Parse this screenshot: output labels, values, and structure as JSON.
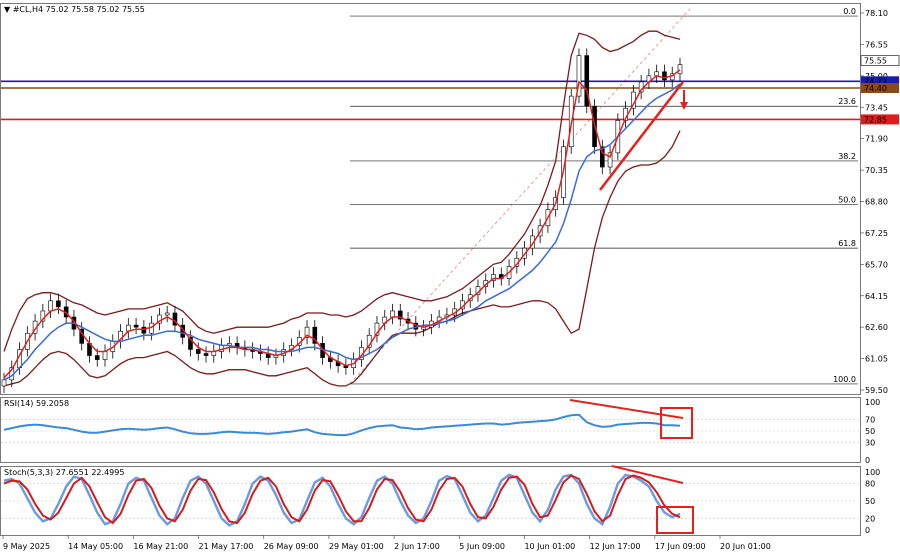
{
  "header": {
    "main": "▼ #CL,H4  75.02 75.58 75.02 75.55",
    "rsi": "RSI(14) 59.2058",
    "stoch": "Stoch(5,3,3) 27.6551 22.4995"
  },
  "chart_data": [
    {
      "type": "candlestick",
      "symbol": "#CL",
      "timeframe": "H4",
      "ohlc_last": {
        "open": 75.02,
        "high": 75.58,
        "low": 75.02,
        "close": 75.55
      },
      "price_ticks": [
        78.1,
        76.55,
        75.0,
        73.45,
        71.9,
        70.35,
        68.8,
        67.25,
        65.7,
        64.15,
        62.6,
        61.05,
        59.5
      ],
      "price_ylim": [
        59.5,
        78.1
      ],
      "time_ticks": [
        "9 May 2025",
        "14 May 05:00",
        "16 May 21:00",
        "21 May 17:00",
        "26 May 09:00",
        "29 May 01:00",
        "2 Jun 17:00",
        "5 Jun 09:00",
        "10 Jun 01:00",
        "12 Jun 17:00",
        "17 Jun 09:00",
        "20 Jun 01:00"
      ],
      "close_series": [
        60.0,
        60.6,
        61.5,
        62.3,
        62.9,
        63.4,
        63.9,
        63.6,
        63.1,
        62.5,
        61.8,
        61.2,
        61.0,
        61.4,
        61.9,
        62.4,
        62.7,
        62.6,
        62.3,
        62.8,
        63.2,
        63.3,
        62.7,
        62.1,
        61.5,
        61.3,
        61.2,
        61.4,
        61.7,
        61.8,
        61.6,
        61.5,
        61.4,
        61.3,
        61.1,
        61.2,
        61.5,
        61.7,
        62.1,
        62.6,
        61.8,
        61.1,
        60.9,
        60.7,
        60.6,
        61.0,
        61.6,
        62.2,
        62.8,
        63.1,
        63.4,
        63.0,
        62.8,
        62.5,
        62.6,
        62.9,
        63.1,
        63.2,
        63.5,
        63.9,
        64.2,
        64.6,
        64.9,
        65.2,
        65.0,
        65.6,
        66.0,
        66.5,
        67.1,
        67.6,
        68.4,
        69.0,
        71.5,
        74.0,
        76.0,
        73.5,
        71.5,
        70.5,
        71.2,
        72.8,
        73.4,
        74.2,
        74.7,
        75.0,
        75.2,
        74.8,
        75.1,
        75.55
      ],
      "bollinger_upper": [
        61.4,
        62.5,
        63.4,
        64.0,
        64.2,
        64.3,
        64.3,
        64.2,
        64.0,
        63.8,
        63.7,
        63.5,
        63.3,
        63.2,
        63.3,
        63.4,
        63.5,
        63.5,
        63.5,
        63.6,
        63.7,
        63.8,
        63.6,
        63.4,
        63.0,
        62.6,
        62.4,
        62.3,
        62.4,
        62.5,
        62.6,
        62.6,
        62.6,
        62.6,
        62.6,
        62.7,
        62.8,
        63.0,
        63.1,
        63.3,
        63.3,
        63.3,
        63.2,
        63.2,
        63.1,
        63.2,
        63.4,
        63.7,
        64.0,
        64.2,
        64.3,
        64.2,
        64.1,
        64.0,
        63.9,
        63.9,
        64.0,
        64.1,
        64.3,
        64.5,
        64.8,
        65.1,
        65.4,
        65.7,
        65.8,
        66.2,
        66.7,
        67.2,
        67.9,
        68.6,
        69.6,
        70.8,
        73.5,
        76.0,
        77.1,
        77.0,
        76.8,
        76.4,
        76.2,
        76.3,
        76.5,
        76.7,
        77.0,
        77.2,
        77.2,
        77.0,
        76.9,
        76.8
      ],
      "bollinger_lower": [
        59.7,
        59.8,
        59.9,
        60.2,
        60.6,
        61.0,
        61.3,
        61.4,
        61.3,
        61.0,
        60.6,
        60.2,
        60.1,
        60.2,
        60.5,
        60.8,
        61.0,
        61.1,
        61.1,
        61.2,
        61.3,
        61.4,
        61.2,
        60.9,
        60.6,
        60.4,
        60.3,
        60.3,
        60.4,
        60.5,
        60.5,
        60.5,
        60.4,
        60.3,
        60.2,
        60.2,
        60.3,
        60.4,
        60.5,
        60.6,
        60.3,
        60.0,
        59.8,
        59.7,
        59.7,
        59.9,
        60.3,
        60.8,
        61.3,
        61.8,
        62.2,
        62.3,
        62.3,
        62.3,
        62.4,
        62.6,
        62.8,
        62.9,
        63.1,
        63.3,
        63.4,
        63.5,
        63.6,
        63.7,
        63.6,
        63.6,
        63.7,
        63.8,
        63.9,
        63.9,
        63.8,
        63.5,
        62.9,
        62.3,
        62.5,
        64.5,
        66.5,
        68.0,
        69.0,
        69.8,
        70.3,
        70.5,
        70.6,
        70.6,
        70.7,
        71.0,
        71.5,
        72.3
      ],
      "ma_fast_red": [
        60.1,
        60.5,
        61.2,
        61.9,
        62.5,
        63.0,
        63.4,
        63.5,
        63.3,
        62.9,
        62.3,
        61.8,
        61.4,
        61.4,
        61.6,
        62.0,
        62.4,
        62.5,
        62.5,
        62.6,
        62.9,
        63.1,
        62.9,
        62.5,
        62.0,
        61.6,
        61.4,
        61.4,
        61.5,
        61.6,
        61.6,
        61.5,
        61.5,
        61.4,
        61.3,
        61.2,
        61.3,
        61.5,
        61.8,
        62.2,
        62.0,
        61.5,
        61.1,
        60.9,
        60.7,
        60.8,
        61.2,
        61.7,
        62.3,
        62.8,
        63.1,
        63.1,
        62.9,
        62.7,
        62.6,
        62.7,
        62.9,
        63.1,
        63.3,
        63.6,
        64.0,
        64.3,
        64.7,
        65.0,
        65.0,
        65.3,
        65.7,
        66.2,
        66.7,
        67.3,
        68.0,
        68.7,
        70.3,
        72.6,
        74.7,
        74.3,
        72.6,
        71.2,
        71.0,
        72.0,
        72.9,
        73.6,
        74.3,
        74.7,
        75.0,
        74.9,
        75.0,
        75.3
      ],
      "ma_slow_blue": [
        60.0,
        60.2,
        60.6,
        61.0,
        61.5,
        61.9,
        62.3,
        62.6,
        62.8,
        62.8,
        62.6,
        62.4,
        62.2,
        62.0,
        61.9,
        61.9,
        62.0,
        62.1,
        62.2,
        62.2,
        62.3,
        62.4,
        62.4,
        62.3,
        62.2,
        62.0,
        61.9,
        61.8,
        61.7,
        61.7,
        61.6,
        61.6,
        61.6,
        61.5,
        61.5,
        61.4,
        61.4,
        61.4,
        61.5,
        61.6,
        61.6,
        61.5,
        61.4,
        61.3,
        61.1,
        61.0,
        61.1,
        61.3,
        61.5,
        61.8,
        62.1,
        62.3,
        62.5,
        62.6,
        62.7,
        62.7,
        62.8,
        62.9,
        63.0,
        63.2,
        63.4,
        63.6,
        63.9,
        64.1,
        64.3,
        64.5,
        64.8,
        65.1,
        65.4,
        65.8,
        66.3,
        66.8,
        67.7,
        68.9,
        70.3,
        71.0,
        71.3,
        71.4,
        71.6,
        72.0,
        72.4,
        72.8,
        73.2,
        73.6,
        73.9,
        74.1,
        74.3,
        74.6
      ],
      "horizontal_levels": [
        {
          "price": 74.73,
          "label": "74.73",
          "color": "#1a1ab4"
        },
        {
          "price": 74.4,
          "label": "74.40",
          "color": "#8a4a12"
        },
        {
          "price": 72.85,
          "label": "72.85",
          "color": "#e01b1b"
        }
      ],
      "fibonacci": [
        {
          "level": "0.0",
          "price": 77.95
        },
        {
          "level": "23.6",
          "price": 73.5
        },
        {
          "level": "38.2",
          "price": 70.8
        },
        {
          "level": "50.0",
          "price": 68.65
        },
        {
          "level": "61.8",
          "price": 66.5
        },
        {
          "level": "100.0",
          "price": 59.8
        }
      ],
      "current_price_label": "75.55"
    },
    {
      "type": "line",
      "name": "RSI(14)",
      "last": 59.2058,
      "ylim": [
        0,
        100
      ],
      "ticks": [
        100,
        70,
        50,
        30,
        0
      ],
      "values": [
        52,
        55,
        58,
        60,
        61,
        60,
        58,
        56,
        55,
        52,
        49,
        47,
        47,
        49,
        51,
        53,
        54,
        53,
        52,
        53,
        55,
        56,
        53,
        49,
        46,
        45,
        45,
        46,
        48,
        49,
        48,
        47,
        47,
        46,
        45,
        46,
        48,
        49,
        51,
        53,
        48,
        45,
        44,
        43,
        43,
        46,
        51,
        55,
        58,
        59,
        60,
        56,
        55,
        53,
        54,
        56,
        57,
        58,
        59,
        60,
        61,
        62,
        63,
        63,
        61,
        62,
        64,
        65,
        66,
        67,
        68,
        70,
        74,
        77,
        78,
        65,
        60,
        57,
        58,
        61,
        62,
        63,
        64,
        64,
        63,
        60,
        60,
        59
      ]
    },
    {
      "type": "line",
      "name": "Stoch(5,3,3)",
      "main_last": 27.6551,
      "signal_last": 22.4995,
      "ylim": [
        0,
        100
      ],
      "ticks": [
        100,
        80,
        50,
        20,
        0
      ],
      "main": [
        85,
        88,
        80,
        55,
        30,
        15,
        20,
        45,
        75,
        92,
        88,
        60,
        30,
        10,
        15,
        45,
        80,
        90,
        85,
        55,
        25,
        10,
        20,
        55,
        85,
        92,
        80,
        50,
        20,
        8,
        15,
        45,
        80,
        92,
        85,
        60,
        30,
        12,
        18,
        50,
        82,
        90,
        75,
        45,
        20,
        10,
        22,
        55,
        85,
        92,
        80,
        50,
        25,
        12,
        20,
        50,
        85,
        93,
        88,
        60,
        30,
        15,
        25,
        55,
        85,
        95,
        90,
        60,
        30,
        15,
        35,
        70,
        92,
        95,
        80,
        45,
        20,
        10,
        40,
        80,
        95,
        92,
        85,
        75,
        50,
        30,
        22,
        28
      ],
      "signal": [
        80,
        85,
        84,
        70,
        45,
        25,
        18,
        30,
        55,
        80,
        90,
        75,
        48,
        22,
        12,
        28,
        60,
        85,
        88,
        72,
        42,
        20,
        15,
        35,
        68,
        88,
        86,
        65,
        36,
        15,
        12,
        30,
        62,
        85,
        90,
        75,
        45,
        22,
        15,
        35,
        68,
        86,
        84,
        60,
        32,
        15,
        15,
        38,
        70,
        88,
        86,
        66,
        38,
        18,
        15,
        35,
        68,
        88,
        90,
        75,
        45,
        22,
        20,
        40,
        70,
        90,
        92,
        78,
        45,
        22,
        25,
        52,
        82,
        94,
        88,
        62,
        32,
        15,
        25,
        60,
        88,
        94,
        90,
        82,
        65,
        42,
        28,
        22
      ]
    }
  ],
  "annotations": {
    "line_color": "#e8201c",
    "box_color": "#e8201c"
  },
  "colors": {
    "bollinger": "#7a1a1a",
    "ma_fast": "#e02020",
    "ma_slow": "#3a6ad8",
    "candle": "#000000",
    "rsi": "#3a8ad8",
    "stoch_main": "#6a9ae0",
    "stoch_signal": "#d41c1c"
  }
}
